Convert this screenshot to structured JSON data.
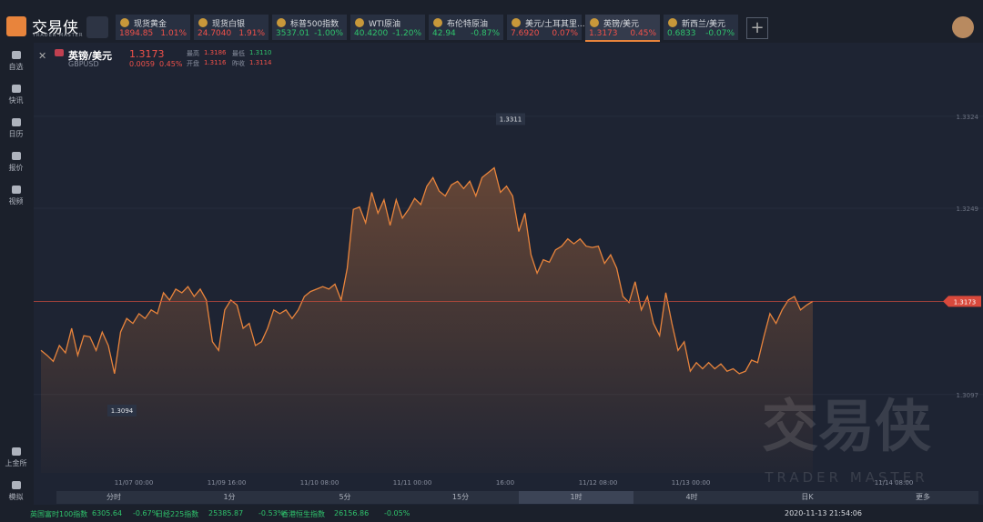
{
  "app": {
    "logo": "交易侠",
    "logo_sub": "TRADER MASTER"
  },
  "tickers": [
    {
      "name": "现货黄金",
      "price": "1894.85",
      "change": "1.01%"
    },
    {
      "name": "现货白银",
      "price": "24.7040",
      "change": "1.91%"
    },
    {
      "name": "标普500指数",
      "price": "3537.01",
      "change": "-1.00%"
    },
    {
      "name": "WTI原油",
      "price": "40.4200",
      "change": "-1.20%"
    },
    {
      "name": "布伦特原油",
      "price": "42.94",
      "change": "-0.87%"
    },
    {
      "name": "美元/土耳其里...",
      "price": "7.6920",
      "change": "0.07%"
    },
    {
      "name": "英镑/美元",
      "price": "1.3173",
      "change": "0.45%"
    },
    {
      "name": "新西兰/美元",
      "price": "0.6833",
      "change": "-0.07%"
    }
  ],
  "sidebar": [
    "自选",
    "快讯",
    "日历",
    "报价",
    "视频"
  ],
  "sidebar_bottom": [
    "上金所",
    "模拟"
  ],
  "quote": {
    "name": "英镑/美元",
    "price": "1.3173",
    "symbol": "GBPUSD",
    "change": "0.0059",
    "change_pct": "0.45%",
    "stats": [
      {
        "label": "最高",
        "value": "1.3186"
      },
      {
        "label": "开盘",
        "value": "1.3116"
      },
      {
        "label": "最低",
        "value": "1.3110"
      },
      {
        "label": "昨收",
        "value": "1.3114"
      }
    ]
  },
  "chart": {
    "type": "line",
    "color": "#e8843c",
    "values": [
      1.3133,
      1.3129,
      1.3124,
      1.3137,
      1.3131,
      1.3151,
      1.3129,
      1.3145,
      1.3144,
      1.3133,
      1.3148,
      1.3137,
      1.3114,
      1.3148,
      1.3159,
      1.3155,
      1.3163,
      1.3159,
      1.3166,
      1.3163,
      1.318,
      1.3174,
      1.3183,
      1.318,
      1.3185,
      1.3177,
      1.3183,
      1.3174,
      1.314,
      1.3133,
      1.3166,
      1.3174,
      1.317,
      1.3151,
      1.3155,
      1.3137,
      1.314,
      1.3151,
      1.3166,
      1.3163,
      1.3166,
      1.3159,
      1.3166,
      1.3177,
      1.3181,
      1.3183,
      1.3185,
      1.3183,
      1.3187,
      1.3174,
      1.32,
      1.3248,
      1.325,
      1.3237,
      1.3262,
      1.3245,
      1.3256,
      1.3235,
      1.3256,
      1.3241,
      1.3248,
      1.3257,
      1.3252,
      1.3267,
      1.3274,
      1.3263,
      1.3259,
      1.3268,
      1.3271,
      1.3265,
      1.3271,
      1.3259,
      1.3274,
      1.3278,
      1.3282,
      1.3262,
      1.3267,
      1.3259,
      1.323,
      1.3245,
      1.3211,
      1.3196,
      1.3207,
      1.3205,
      1.3215,
      1.3218,
      1.3224,
      1.322,
      1.3224,
      1.3218,
      1.3217,
      1.3218,
      1.3204,
      1.3211,
      1.32,
      1.3177,
      1.3172,
      1.3189,
      1.3166,
      1.3177,
      1.3155,
      1.3145,
      1.318,
      1.3155,
      1.3133,
      1.314,
      1.3116,
      1.3123,
      1.3118,
      1.3123,
      1.3118,
      1.3122,
      1.3116,
      1.3118,
      1.3114,
      1.3116,
      1.3125,
      1.3123,
      1.3144,
      1.3163,
      1.3155,
      1.3166,
      1.3174,
      1.3177,
      1.3166,
      1.317,
      1.3173
    ],
    "ylim": [
      1.3033,
      1.3367
    ],
    "yticks": [
      1.3097,
      1.3249,
      1.3324
    ],
    "current_price": 1.3173,
    "high_label": 1.3311,
    "low_label": 1.3094,
    "x_labels": [
      "11/07 00:00",
      "11/09 16:00",
      "11/10 08:00",
      "11/11 00:00",
      "16:00",
      "11/12 08:00",
      "11/13 00:00",
      "11/14 08:00"
    ],
    "watermark": "交易侠",
    "watermark_sub": "TRADER MASTER"
  },
  "timeframes": [
    "分时",
    "1分",
    "5分",
    "15分",
    "1时",
    "4时",
    "日K",
    "更多"
  ],
  "footer": {
    "indices": [
      {
        "name": "英国富时100指数",
        "price": "6305.64",
        "change": "-0.67%"
      },
      {
        "name": "日经225指数",
        "price": "25385.87",
        "change": "-0.53%"
      },
      {
        "name": "香港恒生指数",
        "price": "26156.86",
        "change": "-0.05%"
      }
    ],
    "datetime": "2020-11-13 21:54:06"
  }
}
